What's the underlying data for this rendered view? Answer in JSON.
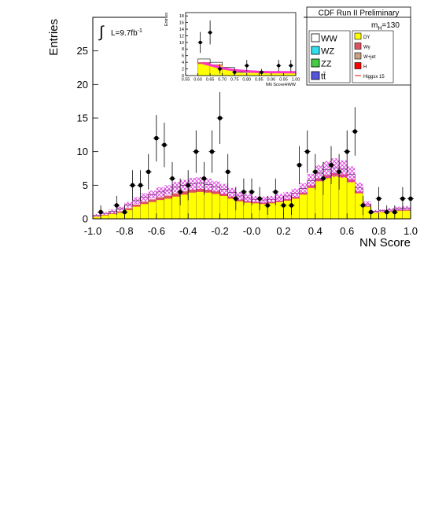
{
  "header": {
    "title": "CDF Run II Preliminary"
  },
  "lumi": {
    "prefix": "∫",
    "text": "L=9.7fb",
    "sup": "-1"
  },
  "mass_label": {
    "text": "m",
    "sub": "H",
    "value": "=130"
  },
  "legend_left": [
    {
      "label": "WW",
      "color": "#ffffff"
    },
    {
      "label": "WZ",
      "color": "#33e0f0"
    },
    {
      "label": "ZZ",
      "color": "#44cc44"
    },
    {
      "label": "tt̄",
      "color": "#5555dd"
    }
  ],
  "legend_right": [
    {
      "label": "DY",
      "color": "#ffff00",
      "kind": "box"
    },
    {
      "label": "Wγ",
      "color": "#e05060",
      "kind": "box"
    },
    {
      "label": "W+jet",
      "color": "#c8a080",
      "kind": "box"
    },
    {
      "label": "H",
      "color": "#ff0000",
      "kind": "box"
    },
    {
      "label": "Higgsx 15",
      "color": "#ff0000",
      "kind": "line"
    }
  ],
  "colors": {
    "dy": "#ffff00",
    "wgamma": "#e05060",
    "wjet": "#c8a080",
    "ww": "#ffffff",
    "band": "#dd33dd",
    "signal": "#ff33cc",
    "data": "#000000"
  },
  "chart_data": [
    {
      "type": "histogram",
      "xlabel": "NN Score",
      "ylabel": "Entries",
      "xlim": [
        -1.0,
        1.0
      ],
      "ylim": [
        0,
        30
      ],
      "xticks": [
        "-1.0",
        "-0.8",
        "-0.6",
        "-0.4",
        "-0.2",
        "-0.0",
        "0.2",
        "0.4",
        "0.6",
        "0.8",
        "1.0"
      ],
      "yticks": [
        "0",
        "5",
        "10",
        "15",
        "20",
        "25"
      ],
      "bin_width": 0.05,
      "x_start": -1.0,
      "background_dy": [
        0.3,
        0.5,
        0.7,
        0.9,
        1.3,
        1.8,
        2.2,
        2.5,
        2.8,
        3.0,
        3.3,
        3.6,
        3.9,
        4.0,
        3.9,
        3.7,
        3.4,
        3.0,
        2.6,
        2.4,
        2.3,
        2.2,
        2.3,
        2.5,
        2.7,
        3.0,
        3.6,
        4.6,
        5.6,
        6.1,
        6.4,
        6.2,
        5.5,
        3.8,
        1.8,
        0.9,
        1.0,
        1.1,
        1.2,
        1.2
      ],
      "background_total": [
        0.5,
        0.8,
        1.1,
        1.5,
        2.1,
        2.7,
        3.2,
        3.6,
        4.0,
        4.3,
        4.7,
        5.0,
        5.2,
        5.3,
        5.1,
        4.8,
        4.4,
        3.9,
        3.4,
        3.1,
        2.9,
        2.8,
        2.9,
        3.1,
        3.4,
        3.8,
        4.5,
        5.7,
        6.8,
        7.3,
        7.6,
        7.4,
        6.6,
        4.6,
        2.2,
        1.1,
        1.2,
        1.3,
        1.5,
        1.6
      ],
      "background_uncertainty": [
        0.2,
        0.2,
        0.3,
        0.3,
        0.4,
        0.5,
        0.6,
        0.6,
        0.7,
        0.7,
        0.8,
        0.8,
        0.9,
        0.9,
        0.9,
        0.8,
        0.8,
        0.7,
        0.6,
        0.6,
        0.5,
        0.5,
        0.5,
        0.6,
        0.6,
        0.7,
        0.8,
        1.0,
        1.2,
        1.3,
        1.4,
        1.3,
        1.2,
        0.8,
        0.4,
        0.2,
        0.2,
        0.3,
        0.3,
        0.3
      ],
      "data": [
        {
          "x": -0.95,
          "y": 1
        },
        {
          "x": -0.85,
          "y": 2
        },
        {
          "x": -0.8,
          "y": 1
        },
        {
          "x": -0.75,
          "y": 5
        },
        {
          "x": -0.7,
          "y": 5
        },
        {
          "x": -0.65,
          "y": 7
        },
        {
          "x": -0.6,
          "y": 12
        },
        {
          "x": -0.55,
          "y": 11
        },
        {
          "x": -0.5,
          "y": 6
        },
        {
          "x": -0.45,
          "y": 4
        },
        {
          "x": -0.4,
          "y": 5
        },
        {
          "x": -0.35,
          "y": 10
        },
        {
          "x": -0.3,
          "y": 6
        },
        {
          "x": -0.25,
          "y": 10
        },
        {
          "x": -0.2,
          "y": 15
        },
        {
          "x": -0.15,
          "y": 7
        },
        {
          "x": -0.1,
          "y": 3
        },
        {
          "x": -0.05,
          "y": 4
        },
        {
          "x": 0.0,
          "y": 4
        },
        {
          "x": 0.05,
          "y": 3
        },
        {
          "x": 0.1,
          "y": 2
        },
        {
          "x": 0.15,
          "y": 4
        },
        {
          "x": 0.2,
          "y": 2
        },
        {
          "x": 0.25,
          "y": 2
        },
        {
          "x": 0.3,
          "y": 8
        },
        {
          "x": 0.35,
          "y": 10
        },
        {
          "x": 0.4,
          "y": 7
        },
        {
          "x": 0.45,
          "y": 6
        },
        {
          "x": 0.5,
          "y": 8
        },
        {
          "x": 0.55,
          "y": 7
        },
        {
          "x": 0.6,
          "y": 10
        },
        {
          "x": 0.65,
          "y": 13
        },
        {
          "x": 0.7,
          "y": 2
        },
        {
          "x": 0.75,
          "y": 1
        },
        {
          "x": 0.8,
          "y": 3
        },
        {
          "x": 0.85,
          "y": 1
        },
        {
          "x": 0.9,
          "y": 1
        },
        {
          "x": 0.95,
          "y": 3
        },
        {
          "x": 1.0,
          "y": 3
        }
      ]
    },
    {
      "type": "histogram",
      "xlabel": "NN ScoreHWW",
      "ylabel": "Entries",
      "xlim": [
        0.55,
        1.0
      ],
      "ylim": [
        0,
        19
      ],
      "xticks": [
        "0.55",
        "0.60",
        "0.65",
        "0.70",
        "0.75",
        "0.80",
        "0.85",
        "0.90",
        "0.95",
        "1.00"
      ],
      "yticks": [
        "0",
        "2",
        "4",
        "6",
        "8",
        "10",
        "12",
        "14",
        "16",
        "18"
      ],
      "bin_width": 0.05,
      "x_start": 0.55,
      "background_total": [
        0.0,
        5.0,
        4.0,
        2.5,
        1.0,
        1.0,
        1.0,
        1.0,
        1.0
      ],
      "background_dy": [
        0.0,
        3.5,
        3.0,
        1.8,
        0.8,
        0.8,
        0.8,
        0.8,
        0.8
      ],
      "signal_curve": [
        {
          "x": 0.62,
          "y": 3.8
        },
        {
          "x": 0.66,
          "y": 3.0
        },
        {
          "x": 0.7,
          "y": 2.2
        },
        {
          "x": 0.75,
          "y": 1.6
        },
        {
          "x": 0.8,
          "y": 1.3
        },
        {
          "x": 0.85,
          "y": 1.1
        },
        {
          "x": 0.9,
          "y": 1.0
        },
        {
          "x": 1.0,
          "y": 1.0
        }
      ],
      "data": [
        {
          "x": 0.61,
          "y": 10
        },
        {
          "x": 0.65,
          "y": 13
        },
        {
          "x": 0.69,
          "y": 2
        },
        {
          "x": 0.75,
          "y": 1
        },
        {
          "x": 0.8,
          "y": 3
        },
        {
          "x": 0.86,
          "y": 1
        },
        {
          "x": 0.93,
          "y": 3
        },
        {
          "x": 0.98,
          "y": 3
        }
      ]
    }
  ]
}
